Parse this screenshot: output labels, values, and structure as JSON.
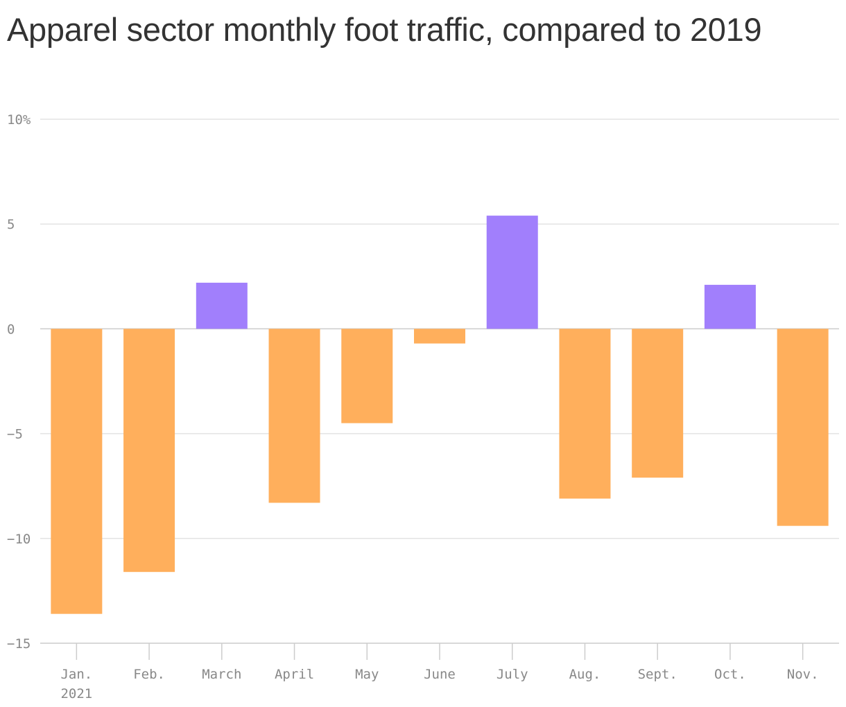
{
  "chart_data": {
    "type": "bar",
    "title": "Apparel sector monthly foot traffic, compared to 2019",
    "xlabel": "",
    "ylabel": "",
    "categories": [
      "Jan.",
      "Feb.",
      "March",
      "April",
      "May",
      "June",
      "July",
      "Aug.",
      "Sept.",
      "Oct.",
      "Nov."
    ],
    "category_sublabels": [
      "2021",
      "",
      "",
      "",
      "",
      "",
      "",
      "",
      "",
      "",
      ""
    ],
    "values": [
      -13.6,
      -11.6,
      2.2,
      -8.3,
      -4.5,
      -0.7,
      5.4,
      -8.1,
      -7.1,
      2.1,
      -9.4
    ],
    "ylim": [
      -15,
      10
    ],
    "yticks": [
      10,
      5,
      0,
      -5,
      -10,
      -15
    ],
    "ytick_labels": [
      "10%",
      "5",
      "0",
      "−5",
      "−10",
      "−15"
    ],
    "grid": true,
    "colors": {
      "positive": "#a17ffc",
      "negative": "#ffaf5c",
      "grid": "#e3e3e3",
      "axis": "#cccccc",
      "tick_text": "#888888",
      "title": "#333333"
    }
  }
}
